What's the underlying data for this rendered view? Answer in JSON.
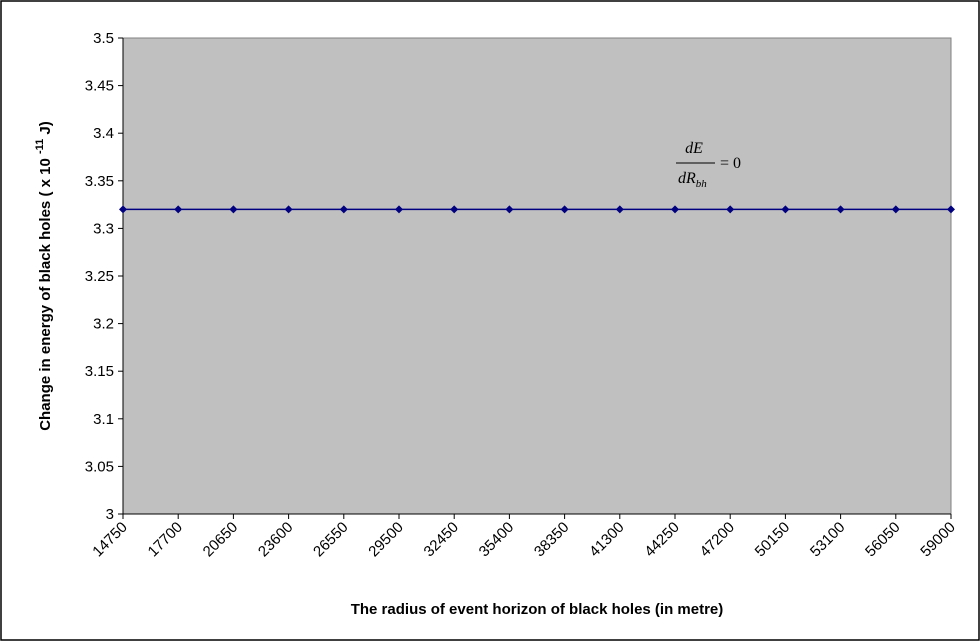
{
  "chart_data": {
    "type": "line",
    "x": [
      "14750",
      "17700",
      "20650",
      "23600",
      "26550",
      "29500",
      "32450",
      "35400",
      "38350",
      "41300",
      "44250",
      "47200",
      "50150",
      "53100",
      "56050",
      "59000"
    ],
    "series": [
      {
        "values": [
          3.32,
          3.32,
          3.32,
          3.32,
          3.32,
          3.32,
          3.32,
          3.32,
          3.32,
          3.32,
          3.32,
          3.32,
          3.32,
          3.32,
          3.32,
          3.32
        ]
      }
    ],
    "xlabel": "The radius of event horizon of black holes (in metre)",
    "ylabel_main": "Change in  energy of black holes ( x 10 ",
    "ylabel_exponent": "-11",
    "ylabel_end": " J)",
    "ylim": [
      3,
      3.5
    ],
    "yticks": [
      "3",
      "3.05",
      "3.1",
      "3.15",
      "3.2",
      "3.25",
      "3.3",
      "3.35",
      "3.4",
      "3.45",
      "3.5"
    ],
    "grid": false,
    "legend": "none",
    "annotation": {
      "numerator": "dE",
      "denominator_main": "dR",
      "denominator_sub": "bh",
      "rhs": "= 0"
    },
    "colors": {
      "plot_background": "#c0c0c0",
      "line": "#000080",
      "marker": "#000080"
    }
  }
}
